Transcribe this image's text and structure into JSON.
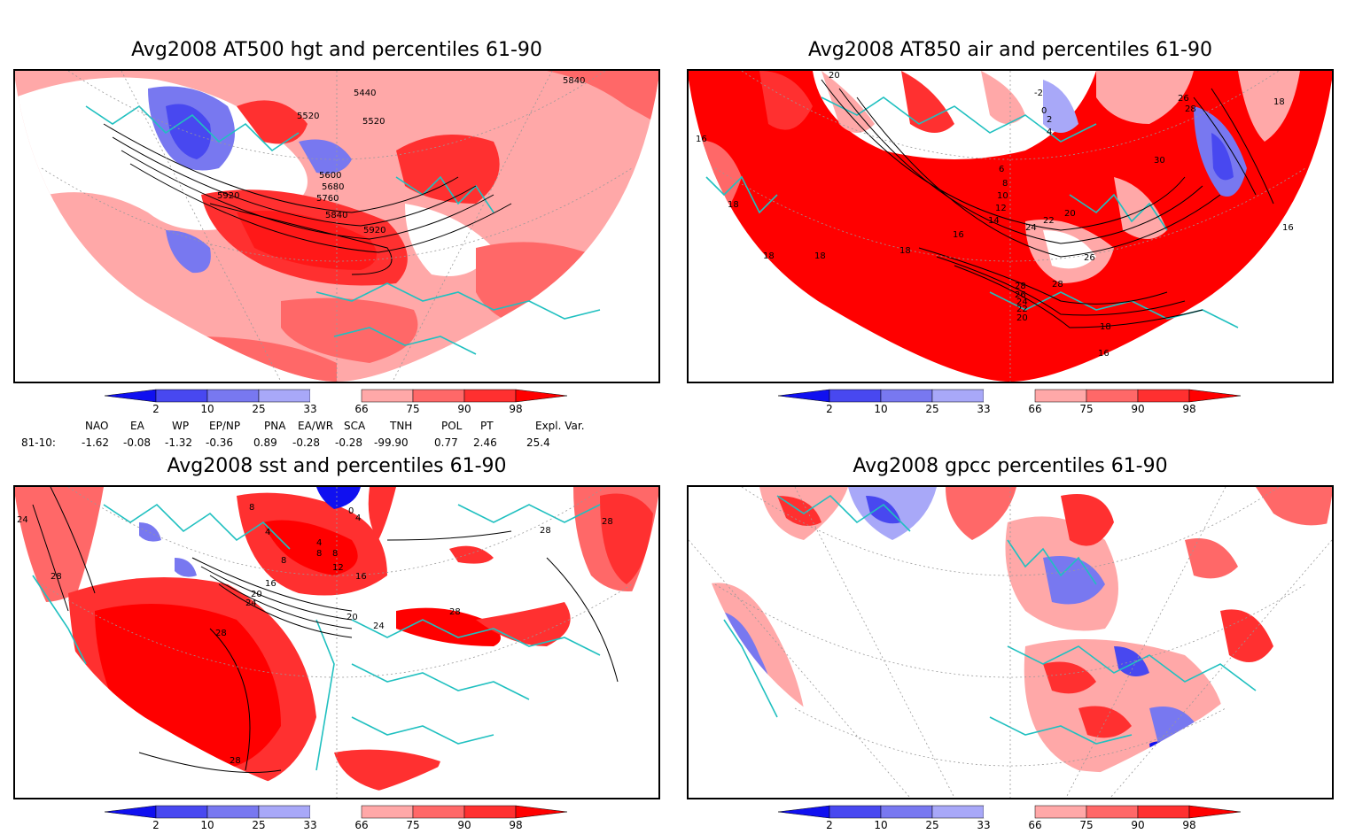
{
  "panels": [
    {
      "title": "Avg2008 AT500 hgt and percentiles 61-90",
      "contour_labels": [
        "5840",
        "5440",
        "5520",
        "5520",
        "5600",
        "5680",
        "5760",
        "5840",
        "5920",
        "5920"
      ]
    },
    {
      "title": "Avg2008 AT850 air and percentiles 61-90",
      "contour_labels": [
        "20",
        "-2",
        "0",
        "2",
        "4",
        "26",
        "28",
        "18",
        "16",
        "6",
        "8",
        "10",
        "12",
        "14",
        "22",
        "20",
        "24",
        "30",
        "16",
        "26",
        "16",
        "18",
        "18",
        "18",
        "18",
        "28",
        "28",
        "26",
        "24",
        "22",
        "20",
        "18",
        "16"
      ]
    },
    {
      "title": "Avg2008 sst and percentiles 61-90",
      "contour_labels": [
        "24",
        "28",
        "28",
        "28",
        "28",
        "28",
        "28",
        "16",
        "20",
        "24",
        "20",
        "24",
        "16",
        "12",
        "8",
        "4",
        "4",
        "8",
        "8",
        "8",
        "4",
        "0"
      ]
    },
    {
      "title": "Avg2008 gpcc percentiles 61-90",
      "contour_labels": []
    }
  ],
  "colorbar": {
    "labels": [
      "2",
      "10",
      "25",
      "33",
      "66",
      "75",
      "90",
      "98"
    ],
    "colors": [
      "#1010f0",
      "#4848f0",
      "#7878f0",
      "#a8a8f8",
      "#ffffff",
      "#ffa8a8",
      "#ff6868",
      "#ff3030",
      "#ff0000"
    ]
  },
  "indices": {
    "headers": [
      "NAO",
      "EA",
      "WP",
      "EP/NP",
      "PNA",
      "EA/WR",
      "SCA",
      "TNH",
      "POL",
      "PT",
      "Expl. Var."
    ],
    "row_label": "81-10:",
    "values": [
      "-1.62",
      "-0.08",
      "-1.32",
      "-0.36",
      "0.89",
      "-0.28",
      "-0.28",
      "-99.90",
      "0.77",
      "2.46",
      "25.4"
    ]
  },
  "style": {
    "coast": "#20c0c0",
    "contour": "#000000"
  }
}
